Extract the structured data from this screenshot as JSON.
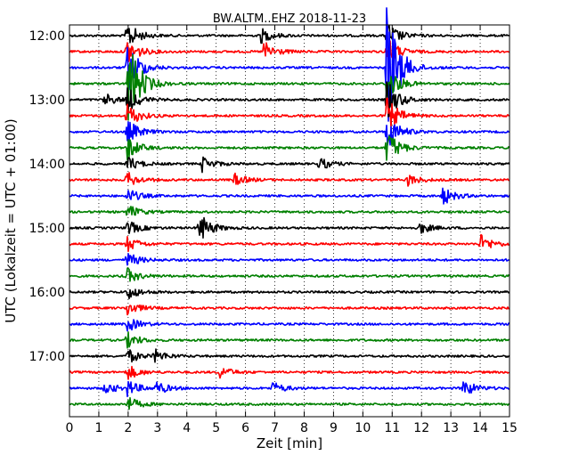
{
  "chart_data": {
    "type": "line",
    "title": "BW.ALTM..EHZ 2018-11-23",
    "xlabel": "Zeit  [min]",
    "ylabel": "UTC (Lokalzeit = UTC + 01:00)",
    "xlim": [
      0,
      15
    ],
    "x_ticks": [
      "0",
      "1",
      "2",
      "3",
      "4",
      "5",
      "6",
      "7",
      "8",
      "9",
      "10",
      "11",
      "12",
      "13",
      "14",
      "15"
    ],
    "y_ticks": [
      "12:00",
      "13:00",
      "14:00",
      "15:00",
      "16:00",
      "17:00"
    ],
    "grid": "vertical-dotted",
    "trace_interval_min": 15,
    "first_trace": "12:00",
    "trace_colors": [
      "#000000",
      "#ff0000",
      "#0000ff",
      "#008000"
    ],
    "series": [
      {
        "start": "12:00",
        "color": "#000000",
        "events": [
          {
            "x": 1.95,
            "amp": 0.9
          },
          {
            "x": 10.8,
            "amp": 0.9
          },
          {
            "x": 6.5,
            "amp": 0.5
          }
        ]
      },
      {
        "start": "12:15",
        "color": "#ff0000",
        "events": [
          {
            "x": 1.95,
            "amp": 0.9
          },
          {
            "x": 10.8,
            "amp": 0.9
          },
          {
            "x": 6.6,
            "amp": 0.7
          }
        ]
      },
      {
        "start": "12:30",
        "color": "#0000ff",
        "events": [
          {
            "x": 1.95,
            "amp": 1.8
          },
          {
            "x": 10.8,
            "amp": 4.5
          }
        ]
      },
      {
        "start": "12:45",
        "color": "#008000",
        "events": [
          {
            "x": 2.0,
            "amp": 3.0
          },
          {
            "x": 10.8,
            "amp": 1.2
          }
        ]
      },
      {
        "start": "13:00",
        "color": "#000000",
        "events": [
          {
            "x": 1.95,
            "amp": 0.8
          },
          {
            "x": 10.8,
            "amp": 1.3
          },
          {
            "x": 1.2,
            "amp": 0.4
          }
        ]
      },
      {
        "start": "13:15",
        "color": "#ff0000",
        "events": [
          {
            "x": 1.95,
            "amp": 0.8
          },
          {
            "x": 10.8,
            "amp": 1.2
          }
        ]
      },
      {
        "start": "13:30",
        "color": "#0000ff",
        "events": [
          {
            "x": 1.95,
            "amp": 0.8
          },
          {
            "x": 10.8,
            "amp": 1.2
          }
        ]
      },
      {
        "start": "13:45",
        "color": "#008000",
        "events": [
          {
            "x": 1.95,
            "amp": 0.8
          },
          {
            "x": 10.8,
            "amp": 1.2
          }
        ]
      },
      {
        "start": "14:00",
        "color": "#000000",
        "events": [
          {
            "x": 1.95,
            "amp": 0.5
          },
          {
            "x": 4.5,
            "amp": 0.5
          },
          {
            "x": 8.5,
            "amp": 0.4
          }
        ]
      },
      {
        "start": "14:15",
        "color": "#ff0000",
        "events": [
          {
            "x": 1.95,
            "amp": 0.5
          },
          {
            "x": 5.6,
            "amp": 0.4
          },
          {
            "x": 11.5,
            "amp": 0.4
          }
        ]
      },
      {
        "start": "14:30",
        "color": "#0000ff",
        "events": [
          {
            "x": 1.95,
            "amp": 0.5
          },
          {
            "x": 12.7,
            "amp": 0.6
          }
        ]
      },
      {
        "start": "14:45",
        "color": "#008000",
        "events": [
          {
            "x": 1.95,
            "amp": 0.5
          }
        ]
      },
      {
        "start": "15:00",
        "color": "#000000",
        "events": [
          {
            "x": 1.95,
            "amp": 0.5
          },
          {
            "x": 4.4,
            "amp": 1.0
          },
          {
            "x": 11.9,
            "amp": 0.4
          }
        ]
      },
      {
        "start": "15:15",
        "color": "#ff0000",
        "events": [
          {
            "x": 1.95,
            "amp": 0.5
          },
          {
            "x": 14.0,
            "amp": 0.6
          }
        ]
      },
      {
        "start": "15:30",
        "color": "#0000ff",
        "events": [
          {
            "x": 1.95,
            "amp": 0.5
          }
        ]
      },
      {
        "start": "15:45",
        "color": "#008000",
        "events": [
          {
            "x": 1.95,
            "amp": 0.5
          }
        ]
      },
      {
        "start": "16:00",
        "color": "#000000",
        "events": [
          {
            "x": 1.95,
            "amp": 0.5
          }
        ]
      },
      {
        "start": "16:15",
        "color": "#ff0000",
        "events": [
          {
            "x": 1.95,
            "amp": 0.5
          }
        ]
      },
      {
        "start": "16:30",
        "color": "#0000ff",
        "events": [
          {
            "x": 1.95,
            "amp": 0.5
          }
        ]
      },
      {
        "start": "16:45",
        "color": "#008000",
        "events": [
          {
            "x": 1.95,
            "amp": 0.5
          }
        ]
      },
      {
        "start": "17:00",
        "color": "#000000",
        "events": [
          {
            "x": 1.95,
            "amp": 0.5
          },
          {
            "x": 2.9,
            "amp": 0.4
          }
        ]
      },
      {
        "start": "17:15",
        "color": "#ff0000",
        "events": [
          {
            "x": 1.95,
            "amp": 0.5
          },
          {
            "x": 5.1,
            "amp": 0.4
          }
        ]
      },
      {
        "start": "17:30",
        "color": "#0000ff",
        "events": [
          {
            "x": 1.95,
            "amp": 0.5
          },
          {
            "x": 1.2,
            "amp": 0.4
          },
          {
            "x": 2.95,
            "amp": 0.4
          },
          {
            "x": 6.9,
            "amp": 0.4
          },
          {
            "x": 13.4,
            "amp": 0.6
          }
        ]
      },
      {
        "start": "17:45",
        "color": "#008000",
        "events": [
          {
            "x": 1.95,
            "amp": 0.5
          }
        ]
      }
    ]
  }
}
